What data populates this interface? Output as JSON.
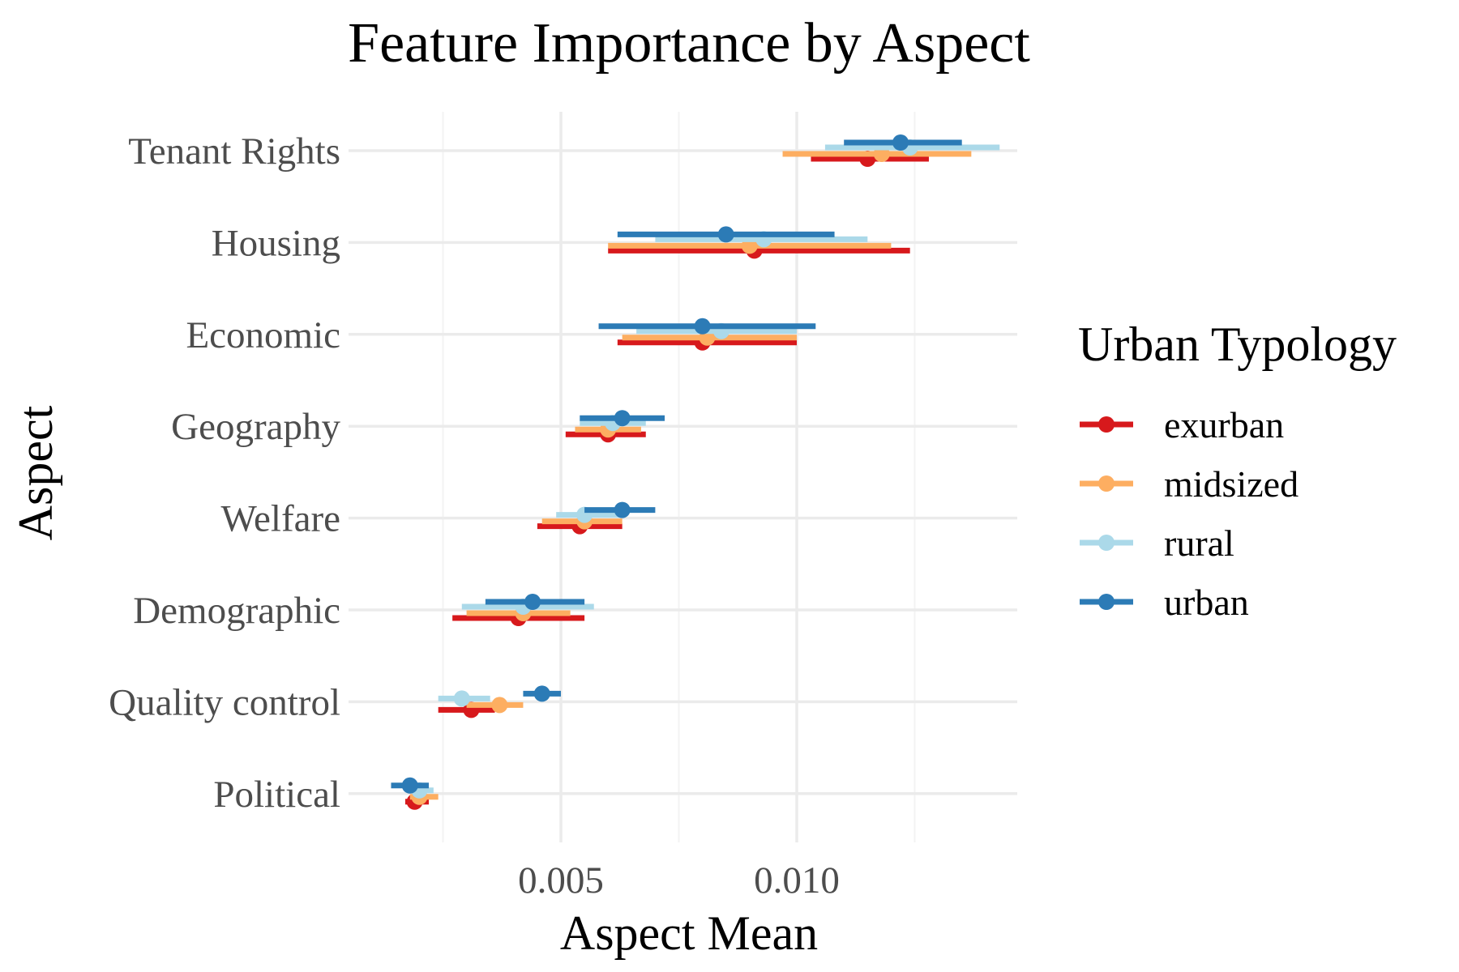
{
  "chart_data": {
    "type": "point-range",
    "title": "Feature Importance by Aspect",
    "xlabel": "Aspect Mean",
    "ylabel": "Aspect",
    "xlim": [
      0.0,
      0.0148
    ],
    "x_ticks": [
      0.005,
      0.01
    ],
    "x_tick_labels": [
      "0.005",
      "0.010"
    ],
    "grid": true,
    "legend": {
      "title": "Urban Typology",
      "position": "right"
    },
    "categories": [
      "Tenant Rights",
      "Housing",
      "Economic",
      "Geography",
      "Welfare",
      "Demographic",
      "Quality control",
      "Political"
    ],
    "series": [
      {
        "name": "exurban",
        "color": "#d7191c",
        "mean": [
          0.0115,
          0.0091,
          0.008,
          0.006,
          0.0054,
          0.0041,
          0.0031,
          0.0019
        ],
        "low": [
          0.0103,
          0.006,
          0.0062,
          0.0051,
          0.0045,
          0.0027,
          0.0024,
          0.0017
        ],
        "high": [
          0.0128,
          0.0124,
          0.01,
          0.0068,
          0.0063,
          0.0055,
          0.0036,
          0.0022
        ]
      },
      {
        "name": "midsized",
        "color": "#fdae61",
        "mean": [
          0.0118,
          0.009,
          0.0081,
          0.006,
          0.0055,
          0.0042,
          0.0037,
          0.002
        ],
        "low": [
          0.0097,
          0.006,
          0.0063,
          0.0053,
          0.0046,
          0.003,
          0.003,
          0.0018
        ],
        "high": [
          0.0137,
          0.012,
          0.01,
          0.0067,
          0.0063,
          0.0052,
          0.0042,
          0.0024
        ]
      },
      {
        "name": "rural",
        "color": "#abd9e9",
        "mean": [
          0.0124,
          0.0093,
          0.0084,
          0.0061,
          0.0055,
          0.0042,
          0.0029,
          0.002
        ],
        "low": [
          0.0106,
          0.007,
          0.0066,
          0.0054,
          0.0049,
          0.0029,
          0.0024,
          0.0018
        ],
        "high": [
          0.0143,
          0.0115,
          0.01,
          0.0068,
          0.0063,
          0.0057,
          0.0035,
          0.0023
        ]
      },
      {
        "name": "urban",
        "color": "#2c7bb6",
        "mean": [
          0.0122,
          0.0085,
          0.008,
          0.0063,
          0.0063,
          0.0044,
          0.0046,
          0.0018
        ],
        "low": [
          0.011,
          0.0062,
          0.0058,
          0.0054,
          0.0055,
          0.0034,
          0.0042,
          0.0014
        ],
        "high": [
          0.0135,
          0.0108,
          0.0104,
          0.0072,
          0.007,
          0.0055,
          0.005,
          0.0022
        ]
      }
    ]
  }
}
